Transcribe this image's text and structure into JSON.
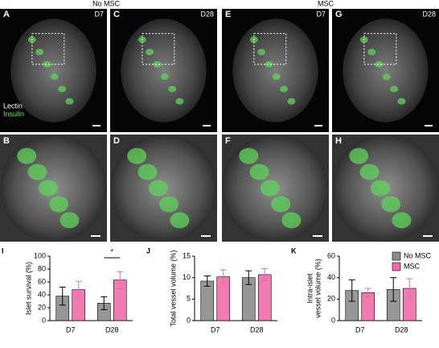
{
  "headers": [
    "No MSC",
    "MSC"
  ],
  "top_panels": [
    {
      "letter": "A",
      "label": "D7"
    },
    {
      "letter": "C",
      "label": "D28"
    },
    {
      "letter": "E",
      "label": "D7"
    },
    {
      "letter": "G",
      "label": "D28"
    }
  ],
  "bottom_panels": [
    {
      "letter": "B"
    },
    {
      "letter": "D"
    },
    {
      "letter": "F"
    },
    {
      "letter": "H"
    }
  ],
  "stain_labels": {
    "lectin": "Lectin",
    "insulin": "Insulin"
  },
  "chart_data": [
    {
      "type": "bar",
      "panel": "I",
      "ylabel": [
        "Islet survival (%)"
      ],
      "categories": [
        "D7",
        "D28"
      ],
      "series": [
        {
          "color": "#8c8c8c",
          "values": [
            38,
            27
          ],
          "errors": [
            14,
            10
          ]
        },
        {
          "color": "#f06ba8",
          "values": [
            48,
            63
          ],
          "errors": [
            13,
            13
          ]
        }
      ],
      "ylim": [
        0,
        100
      ],
      "yticks": [
        0,
        20,
        40,
        60,
        80,
        100
      ],
      "annotation": "*"
    },
    {
      "type": "bar",
      "panel": "J",
      "ylabel": [
        "Total vessel volume (%)"
      ],
      "categories": [
        "D7",
        "D28"
      ],
      "series": [
        {
          "color": "#8c8c8c",
          "values": [
            9.2,
            10
          ],
          "errors": [
            1.2,
            1.6
          ]
        },
        {
          "color": "#f06ba8",
          "values": [
            10.2,
            10.7
          ],
          "errors": [
            1.6,
            1.4
          ]
        }
      ],
      "ylim": [
        0,
        15
      ],
      "yticks": [
        0,
        5,
        10,
        15
      ]
    },
    {
      "type": "bar",
      "panel": "K",
      "ylabel": [
        "Intra-islet",
        "vessel volume (%)"
      ],
      "categories": [
        "D7",
        "D28"
      ],
      "series": [
        {
          "name": "No MSC",
          "color": "#8c8c8c",
          "values": [
            28,
            29
          ],
          "errors": [
            10,
            11
          ]
        },
        {
          "name": "MSC",
          "color": "#f06ba8",
          "values": [
            26,
            30
          ],
          "errors": [
            4,
            9
          ]
        }
      ],
      "ylim": [
        0,
        60
      ],
      "yticks": [
        0,
        20,
        40,
        60
      ],
      "legend": "upper right"
    }
  ]
}
